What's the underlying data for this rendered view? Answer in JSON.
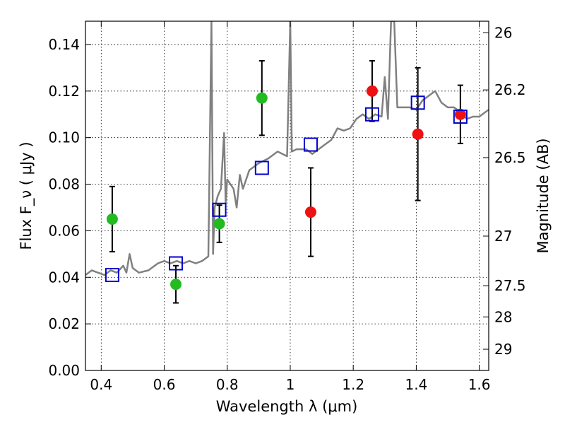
{
  "chart_data": {
    "type": "scatter",
    "xlabel": "Wavelength  λ (μm)",
    "ylabel": "Flux  F_ν  ( μJy )",
    "y2label": "Magnitude (AB)",
    "xlim": [
      0.35,
      1.63
    ],
    "ylim": [
      0.0,
      0.15
    ],
    "x_ticks": [
      0.4,
      0.6,
      0.8,
      1.0,
      1.2,
      1.4,
      1.6
    ],
    "x_tick_labels": [
      "0.4",
      "0.6",
      "0.8",
      "1",
      "1.2",
      "1.4",
      "1.6"
    ],
    "y_ticks": [
      0.0,
      0.02,
      0.04,
      0.06,
      0.08,
      0.1,
      0.12,
      0.14
    ],
    "y_tick_labels": [
      "0.00",
      "0.02",
      "0.04",
      "0.06",
      "0.08",
      "0.10",
      "0.12",
      "0.14"
    ],
    "y2_ticks": [
      {
        "label": "26",
        "flux": 0.145
      },
      {
        "label": "26.2",
        "flux": 0.1205
      },
      {
        "label": "26.5",
        "flux": 0.0914
      },
      {
        "label": "27",
        "flux": 0.0577
      },
      {
        "label": "27.5",
        "flux": 0.0364
      },
      {
        "label": "28",
        "flux": 0.023
      },
      {
        "label": "29",
        "flux": 0.0091
      }
    ],
    "grid": true,
    "series": [
      {
        "kind": "line",
        "color": "#808080",
        "points": [
          [
            0.35,
            0.041
          ],
          [
            0.37,
            0.043
          ],
          [
            0.39,
            0.042
          ],
          [
            0.41,
            0.041
          ],
          [
            0.43,
            0.043
          ],
          [
            0.45,
            0.042
          ],
          [
            0.47,
            0.045
          ],
          [
            0.48,
            0.042
          ],
          [
            0.49,
            0.05
          ],
          [
            0.5,
            0.044
          ],
          [
            0.52,
            0.042
          ],
          [
            0.55,
            0.043
          ],
          [
            0.58,
            0.046
          ],
          [
            0.6,
            0.047
          ],
          [
            0.62,
            0.046
          ],
          [
            0.64,
            0.047
          ],
          [
            0.66,
            0.046
          ],
          [
            0.68,
            0.047
          ],
          [
            0.7,
            0.046
          ],
          [
            0.72,
            0.047
          ],
          [
            0.74,
            0.049
          ],
          [
            0.75,
            0.15
          ],
          [
            0.755,
            0.05
          ],
          [
            0.76,
            0.07
          ],
          [
            0.77,
            0.075
          ],
          [
            0.78,
            0.078
          ],
          [
            0.79,
            0.102
          ],
          [
            0.795,
            0.072
          ],
          [
            0.8,
            0.082
          ],
          [
            0.82,
            0.078
          ],
          [
            0.83,
            0.07
          ],
          [
            0.84,
            0.084
          ],
          [
            0.85,
            0.078
          ],
          [
            0.87,
            0.086
          ],
          [
            0.9,
            0.089
          ],
          [
            0.93,
            0.091
          ],
          [
            0.96,
            0.094
          ],
          [
            0.99,
            0.092
          ],
          [
            1.0,
            0.15
          ],
          [
            1.005,
            0.094
          ],
          [
            1.02,
            0.095
          ],
          [
            1.05,
            0.095
          ],
          [
            1.07,
            0.093
          ],
          [
            1.09,
            0.095
          ],
          [
            1.11,
            0.097
          ],
          [
            1.13,
            0.099
          ],
          [
            1.15,
            0.104
          ],
          [
            1.17,
            0.103
          ],
          [
            1.19,
            0.104
          ],
          [
            1.21,
            0.108
          ],
          [
            1.23,
            0.11
          ],
          [
            1.25,
            0.108
          ],
          [
            1.27,
            0.11
          ],
          [
            1.29,
            0.109
          ],
          [
            1.3,
            0.126
          ],
          [
            1.31,
            0.108
          ],
          [
            1.32,
            0.15
          ],
          [
            1.33,
            0.15
          ],
          [
            1.34,
            0.113
          ],
          [
            1.36,
            0.113
          ],
          [
            1.38,
            0.113
          ],
          [
            1.4,
            0.112
          ],
          [
            1.42,
            0.116
          ],
          [
            1.44,
            0.118
          ],
          [
            1.46,
            0.12
          ],
          [
            1.48,
            0.115
          ],
          [
            1.5,
            0.113
          ],
          [
            1.52,
            0.113
          ],
          [
            1.54,
            0.111
          ],
          [
            1.56,
            0.108
          ],
          [
            1.58,
            0.109
          ],
          [
            1.6,
            0.109
          ],
          [
            1.63,
            0.112
          ]
        ]
      },
      {
        "kind": "points",
        "marker": "circle",
        "color": "#22bb22",
        "points": [
          {
            "x": 0.435,
            "y": 0.065,
            "yerr": 0.014
          },
          {
            "x": 0.637,
            "y": 0.037,
            "yerr": 0.008
          },
          {
            "x": 0.775,
            "y": 0.063,
            "yerr": 0.008
          },
          {
            "x": 0.91,
            "y": 0.117,
            "yerr": 0.016
          }
        ]
      },
      {
        "kind": "points",
        "marker": "circle",
        "color": "#ee1111",
        "points": [
          {
            "x": 1.065,
            "y": 0.068,
            "yerr": 0.019
          },
          {
            "x": 1.26,
            "y": 0.12,
            "yerr": 0.013
          },
          {
            "x": 1.405,
            "y": 0.1015,
            "yerr": 0.0285
          },
          {
            "x": 1.54,
            "y": 0.11,
            "yerr": 0.0125
          }
        ]
      },
      {
        "kind": "points",
        "marker": "square",
        "color": "#0000cc",
        "points": [
          {
            "x": 0.435,
            "y": 0.041
          },
          {
            "x": 0.637,
            "y": 0.046
          },
          {
            "x": 0.775,
            "y": 0.069
          },
          {
            "x": 0.91,
            "y": 0.087
          },
          {
            "x": 1.065,
            "y": 0.097
          },
          {
            "x": 1.26,
            "y": 0.11
          },
          {
            "x": 1.405,
            "y": 0.115
          },
          {
            "x": 1.54,
            "y": 0.109
          }
        ]
      }
    ]
  }
}
